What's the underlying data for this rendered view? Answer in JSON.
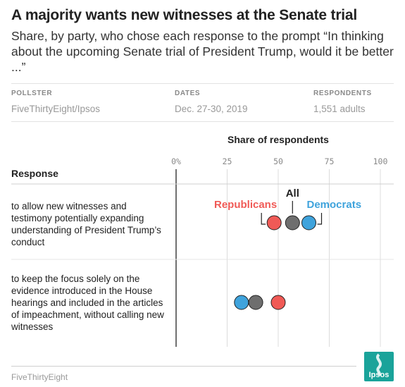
{
  "header": {
    "title": "A majority wants new witnesses at the Senate trial",
    "subtitle": "Share, by party, who chose each response to the prompt “In thinking about the upcoming Senate trial of President Trump, would it be better ...”"
  },
  "meta": {
    "pollster_label": "POLLSTER",
    "pollster_value": "FiveThirtyEight/Ipsos",
    "dates_label": "DATES",
    "dates_value": "Dec. 27-30, 2019",
    "respondents_label": "RESPONDENTS",
    "respondents_value": "1,551 adults"
  },
  "response_header": "Response",
  "footer": {
    "source": "FiveThirtyEight",
    "logo_text": "Ipsos"
  },
  "colors": {
    "republicans": "#f05a56",
    "all": "#6e6e6e",
    "democrats": "#3fa3dc"
  },
  "chart_data": {
    "type": "scatter",
    "title": "Share of respondents",
    "x_ticks": [
      "0%",
      "25",
      "50",
      "75",
      "100"
    ],
    "xlim": [
      0,
      100
    ],
    "categories": [
      "to allow new witnesses and testimony potentially expanding understanding of President Trump’s conduct",
      "to keep the focus solely on the evidence introduced in the House hearings and included in the articles of impeachment, without calling new witnesses"
    ],
    "series": [
      {
        "name": "Republicans",
        "values": [
          48,
          50
        ]
      },
      {
        "name": "All",
        "values": [
          57,
          39
        ]
      },
      {
        "name": "Democrats",
        "values": [
          65,
          32
        ]
      }
    ]
  }
}
